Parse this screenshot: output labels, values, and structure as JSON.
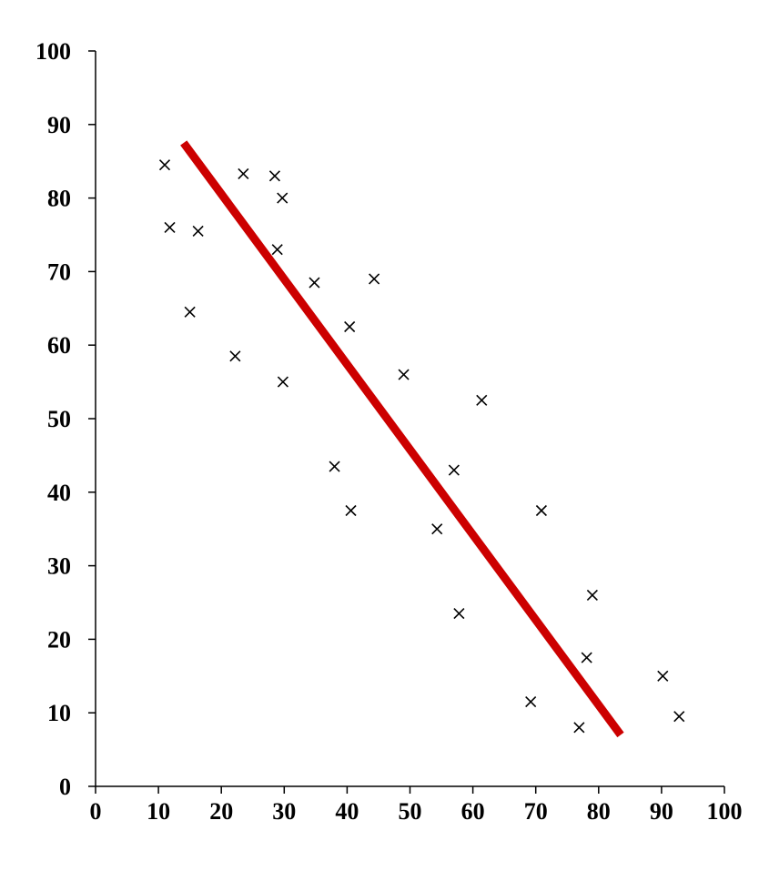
{
  "chart_data": {
    "type": "scatter",
    "title": "",
    "xlabel": "",
    "ylabel": "",
    "xlim": [
      0,
      100
    ],
    "ylim": [
      0,
      100
    ],
    "xticks": [
      0,
      10,
      20,
      30,
      40,
      50,
      60,
      70,
      80,
      90,
      100
    ],
    "yticks": [
      0,
      10,
      20,
      30,
      40,
      50,
      60,
      70,
      80,
      90,
      100
    ],
    "grid": false,
    "legend": "none",
    "marker": "x",
    "points": [
      {
        "x": 11,
        "y": 84.5
      },
      {
        "x": 11.8,
        "y": 76
      },
      {
        "x": 15,
        "y": 64.5
      },
      {
        "x": 16.3,
        "y": 75.5
      },
      {
        "x": 22.2,
        "y": 58.5
      },
      {
        "x": 23.5,
        "y": 83.3
      },
      {
        "x": 28.5,
        "y": 83
      },
      {
        "x": 28.9,
        "y": 73
      },
      {
        "x": 29.7,
        "y": 80
      },
      {
        "x": 29.8,
        "y": 55
      },
      {
        "x": 34.8,
        "y": 68.5
      },
      {
        "x": 38,
        "y": 43.5
      },
      {
        "x": 40.4,
        "y": 62.5
      },
      {
        "x": 40.6,
        "y": 37.5
      },
      {
        "x": 44.3,
        "y": 69
      },
      {
        "x": 49,
        "y": 56
      },
      {
        "x": 54.3,
        "y": 35
      },
      {
        "x": 57,
        "y": 43
      },
      {
        "x": 57.8,
        "y": 23.5
      },
      {
        "x": 61.4,
        "y": 52.5
      },
      {
        "x": 69.2,
        "y": 11.5
      },
      {
        "x": 70.9,
        "y": 37.5
      },
      {
        "x": 76.9,
        "y": 8
      },
      {
        "x": 78.1,
        "y": 17.5
      },
      {
        "x": 79,
        "y": 26
      },
      {
        "x": 90.2,
        "y": 15
      },
      {
        "x": 92.8,
        "y": 9.5
      }
    ],
    "trend_line": {
      "x1": 14,
      "y1": 87.5,
      "x2": 83.5,
      "y2": 7
    },
    "colors": {
      "points": "#000000",
      "trend_line": "#cc0000",
      "axes": "#000000"
    }
  }
}
